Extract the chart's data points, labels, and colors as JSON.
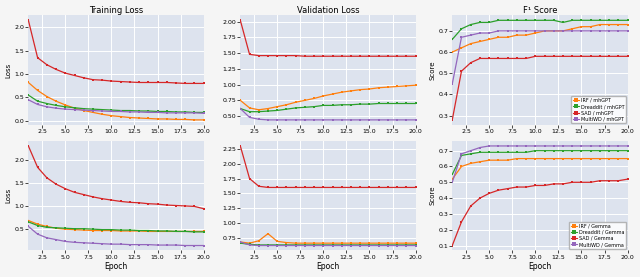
{
  "epochs": [
    1,
    2,
    3,
    4,
    5,
    6,
    7,
    8,
    9,
    10,
    11,
    12,
    13,
    14,
    15,
    16,
    17,
    18,
    19,
    20
  ],
  "colors": {
    "irf": "#ff7f0e",
    "dreaddit": "#2ca02c",
    "sad": "#d62728",
    "multiwc": "#9467bd"
  },
  "top_train_loss": {
    "irf": [
      0.82,
      0.65,
      0.52,
      0.42,
      0.34,
      0.27,
      0.22,
      0.18,
      0.14,
      0.11,
      0.09,
      0.07,
      0.06,
      0.05,
      0.04,
      0.04,
      0.03,
      0.03,
      0.02,
      0.02
    ],
    "dreaddit": [
      0.55,
      0.42,
      0.37,
      0.33,
      0.3,
      0.28,
      0.26,
      0.25,
      0.24,
      0.23,
      0.22,
      0.22,
      0.21,
      0.21,
      0.2,
      0.2,
      0.19,
      0.19,
      0.18,
      0.18
    ],
    "sad": [
      2.15,
      1.35,
      1.2,
      1.1,
      1.02,
      0.97,
      0.92,
      0.88,
      0.87,
      0.85,
      0.84,
      0.83,
      0.82,
      0.82,
      0.82,
      0.82,
      0.81,
      0.8,
      0.8,
      0.8
    ],
    "multiwc": [
      0.45,
      0.35,
      0.3,
      0.27,
      0.25,
      0.24,
      0.23,
      0.22,
      0.21,
      0.2,
      0.2,
      0.19,
      0.19,
      0.18,
      0.18,
      0.17,
      0.17,
      0.17,
      0.17,
      0.16
    ]
  },
  "top_val_loss": {
    "irf": [
      0.75,
      0.63,
      0.6,
      0.62,
      0.65,
      0.68,
      0.72,
      0.75,
      0.78,
      0.82,
      0.85,
      0.88,
      0.9,
      0.92,
      0.93,
      0.95,
      0.96,
      0.97,
      0.98,
      0.99
    ],
    "dreaddit": [
      0.62,
      0.57,
      0.57,
      0.58,
      0.59,
      0.61,
      0.63,
      0.64,
      0.65,
      0.67,
      0.67,
      0.68,
      0.68,
      0.69,
      0.69,
      0.7,
      0.7,
      0.7,
      0.7,
      0.7
    ],
    "sad": [
      2.02,
      1.48,
      1.46,
      1.46,
      1.46,
      1.46,
      1.46,
      1.45,
      1.45,
      1.45,
      1.45,
      1.45,
      1.45,
      1.45,
      1.45,
      1.45,
      1.45,
      1.45,
      1.45,
      1.45
    ],
    "multiwc": [
      0.62,
      0.48,
      0.45,
      0.44,
      0.44,
      0.44,
      0.44,
      0.44,
      0.44,
      0.44,
      0.44,
      0.44,
      0.44,
      0.44,
      0.44,
      0.44,
      0.44,
      0.44,
      0.44,
      0.44
    ]
  },
  "top_f1": {
    "irf": [
      0.6,
      0.62,
      0.64,
      0.65,
      0.66,
      0.67,
      0.67,
      0.68,
      0.68,
      0.69,
      0.7,
      0.7,
      0.7,
      0.71,
      0.72,
      0.72,
      0.73,
      0.73,
      0.73,
      0.73
    ],
    "dreaddit": [
      0.66,
      0.71,
      0.73,
      0.74,
      0.74,
      0.75,
      0.75,
      0.75,
      0.75,
      0.75,
      0.75,
      0.75,
      0.74,
      0.75,
      0.75,
      0.75,
      0.75,
      0.75,
      0.75,
      0.75
    ],
    "sad": [
      0.28,
      0.51,
      0.55,
      0.57,
      0.57,
      0.57,
      0.57,
      0.57,
      0.57,
      0.58,
      0.58,
      0.58,
      0.58,
      0.58,
      0.58,
      0.58,
      0.58,
      0.58,
      0.58,
      0.58
    ],
    "multiwc": [
      0.45,
      0.67,
      0.68,
      0.69,
      0.69,
      0.7,
      0.7,
      0.7,
      0.7,
      0.7,
      0.7,
      0.7,
      0.7,
      0.7,
      0.7,
      0.7,
      0.7,
      0.7,
      0.7,
      0.7
    ]
  },
  "bot_train_loss": {
    "irf": [
      0.68,
      0.6,
      0.55,
      0.51,
      0.49,
      0.48,
      0.47,
      0.46,
      0.46,
      0.46,
      0.45,
      0.45,
      0.45,
      0.44,
      0.44,
      0.44,
      0.44,
      0.44,
      0.44,
      0.44
    ],
    "dreaddit": [
      0.65,
      0.57,
      0.53,
      0.52,
      0.51,
      0.5,
      0.5,
      0.49,
      0.48,
      0.48,
      0.47,
      0.47,
      0.46,
      0.46,
      0.45,
      0.45,
      0.44,
      0.44,
      0.43,
      0.43
    ],
    "sad": [
      2.32,
      1.85,
      1.62,
      1.48,
      1.38,
      1.3,
      1.25,
      1.2,
      1.16,
      1.13,
      1.1,
      1.08,
      1.07,
      1.05,
      1.04,
      1.02,
      1.01,
      1.0,
      0.99,
      0.94
    ],
    "multiwc": [
      0.55,
      0.38,
      0.3,
      0.26,
      0.22,
      0.2,
      0.19,
      0.18,
      0.17,
      0.16,
      0.16,
      0.15,
      0.15,
      0.15,
      0.14,
      0.14,
      0.14,
      0.13,
      0.13,
      0.13
    ]
  },
  "bot_val_loss": {
    "irf": [
      0.68,
      0.66,
      0.7,
      0.82,
      0.69,
      0.67,
      0.66,
      0.66,
      0.66,
      0.66,
      0.66,
      0.66,
      0.66,
      0.66,
      0.66,
      0.66,
      0.66,
      0.66,
      0.66,
      0.66
    ],
    "dreaddit": [
      0.66,
      0.64,
      0.63,
      0.63,
      0.63,
      0.63,
      0.63,
      0.63,
      0.63,
      0.63,
      0.63,
      0.63,
      0.63,
      0.63,
      0.63,
      0.63,
      0.63,
      0.63,
      0.63,
      0.63
    ],
    "sad": [
      2.3,
      1.75,
      1.62,
      1.6,
      1.6,
      1.6,
      1.6,
      1.6,
      1.6,
      1.6,
      1.6,
      1.6,
      1.6,
      1.6,
      1.6,
      1.6,
      1.6,
      1.6,
      1.6,
      1.6
    ],
    "multiwc": [
      0.68,
      0.63,
      0.62,
      0.62,
      0.62,
      0.62,
      0.62,
      0.62,
      0.62,
      0.62,
      0.62,
      0.62,
      0.62,
      0.62,
      0.62,
      0.62,
      0.62,
      0.62,
      0.62,
      0.62
    ]
  },
  "bot_f1": {
    "irf": [
      0.52,
      0.6,
      0.62,
      0.63,
      0.64,
      0.64,
      0.64,
      0.65,
      0.65,
      0.65,
      0.65,
      0.65,
      0.65,
      0.65,
      0.65,
      0.65,
      0.65,
      0.65,
      0.65,
      0.65
    ],
    "dreaddit": [
      0.55,
      0.67,
      0.68,
      0.69,
      0.69,
      0.69,
      0.69,
      0.69,
      0.69,
      0.7,
      0.7,
      0.7,
      0.7,
      0.7,
      0.7,
      0.7,
      0.7,
      0.7,
      0.7,
      0.7
    ],
    "sad": [
      0.1,
      0.25,
      0.35,
      0.4,
      0.43,
      0.45,
      0.46,
      0.47,
      0.47,
      0.48,
      0.48,
      0.49,
      0.49,
      0.5,
      0.5,
      0.5,
      0.51,
      0.51,
      0.51,
      0.52
    ],
    "multiwc": [
      0.5,
      0.68,
      0.7,
      0.72,
      0.73,
      0.73,
      0.73,
      0.73,
      0.73,
      0.73,
      0.73,
      0.73,
      0.73,
      0.73,
      0.73,
      0.73,
      0.73,
      0.73,
      0.73,
      0.73
    ]
  },
  "legend_top": [
    "IRF / mhGPT",
    "Dreaddit / mhGPT",
    "SAD / mhGPT",
    "MultiWD / mhGPT"
  ],
  "legend_bot": [
    "IRF / Gemma",
    "Dreaddit / Gemma",
    "SAD / Gemma",
    "MultiWD / Gemma"
  ],
  "col_titles": [
    "Training Loss",
    "Validation Loss",
    "F¹ Score"
  ],
  "xlabel": "Epoch",
  "ylabel_loss": "Loss",
  "ylabel_score": "Score",
  "bg_color": "#dde3ee",
  "fig_color": "#f5f5f5",
  "xtick_vals": [
    2.5,
    5.0,
    7.5,
    10.0,
    12.5,
    15.0,
    17.5,
    20.0
  ],
  "xtick_labels": [
    "2.5",
    "5.0",
    "7.5",
    "10.0",
    "12.5",
    "15.0",
    "17.5",
    "20.0"
  ]
}
